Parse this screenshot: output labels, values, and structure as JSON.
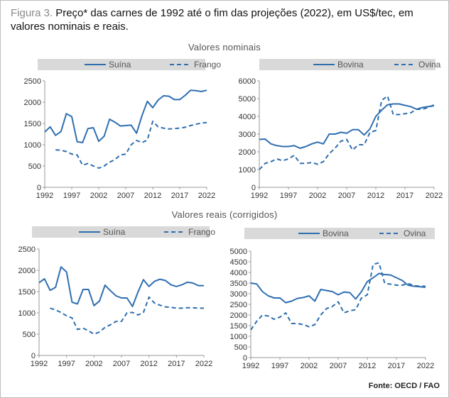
{
  "figure": {
    "label": "Figura 3.",
    "caption": "Preço* das carnes de 1992 até o fim das projeções (2022), em US$/tec, em valores nominais e reais.",
    "section_nominal": "Valores nominais",
    "section_real": "Valores reais (corrigidos)",
    "source": "Fonte: OECD / FAO",
    "colors": {
      "line": "#2f6fb0",
      "legend_bg": "#d9d9d9",
      "axis": "#999999"
    }
  },
  "chart_data": [
    {
      "type": "line",
      "x": [
        1992,
        1993,
        1994,
        1995,
        1996,
        1997,
        1998,
        1999,
        2000,
        2001,
        2002,
        2003,
        2004,
        2005,
        2006,
        2007,
        2008,
        2009,
        2010,
        2011,
        2012,
        2013,
        2014,
        2015,
        2016,
        2017,
        2018,
        2019,
        2020,
        2021,
        2022
      ],
      "xticks": [
        "1992",
        "1997",
        "2002",
        "2007",
        "2012",
        "2017",
        "2022"
      ],
      "yticks": [
        "0",
        "500",
        "1000",
        "1500",
        "2000",
        "2500"
      ],
      "ylim": [
        0,
        2500
      ],
      "series": [
        {
          "name": "Suína",
          "style": "solid",
          "values": [
            1300,
            1420,
            1220,
            1310,
            1730,
            1660,
            1070,
            1050,
            1380,
            1400,
            1080,
            1200,
            1600,
            1530,
            1440,
            1450,
            1460,
            1270,
            1680,
            2020,
            1870,
            2050,
            2150,
            2140,
            2060,
            2060,
            2160,
            2280,
            2270,
            2250,
            2280
          ]
        },
        {
          "name": "Frango",
          "style": "dashed",
          "values": [
            null,
            null,
            880,
            870,
            840,
            780,
            760,
            520,
            560,
            500,
            450,
            500,
            590,
            650,
            760,
            780,
            1000,
            1100,
            1050,
            1110,
            1550,
            1420,
            1390,
            1370,
            1380,
            1390,
            1410,
            1450,
            1480,
            1510,
            1520
          ]
        }
      ]
    },
    {
      "type": "line",
      "x": [
        1992,
        1993,
        1994,
        1995,
        1996,
        1997,
        1998,
        1999,
        2000,
        2001,
        2002,
        2003,
        2004,
        2005,
        2006,
        2007,
        2008,
        2009,
        2010,
        2011,
        2012,
        2013,
        2014,
        2015,
        2016,
        2017,
        2018,
        2019,
        2020,
        2021,
        2022
      ],
      "xticks": [
        "1992",
        "1997",
        "2002",
        "2007",
        "2012",
        "2017",
        "2022"
      ],
      "yticks": [
        "0",
        "1000",
        "2000",
        "3000",
        "4000",
        "5000",
        "6000"
      ],
      "ylim": [
        0,
        6000
      ],
      "series": [
        {
          "name": "Bovina",
          "style": "solid",
          "values": [
            2700,
            2720,
            2450,
            2350,
            2300,
            2300,
            2350,
            2200,
            2300,
            2450,
            2550,
            2450,
            3000,
            3000,
            3100,
            3050,
            3250,
            3250,
            2950,
            3300,
            4000,
            4350,
            4650,
            4700,
            4700,
            4620,
            4550,
            4400,
            4500,
            4550,
            4600
          ]
        },
        {
          "name": "Ovina",
          "style": "dashed",
          "values": [
            1000,
            1350,
            1450,
            1600,
            1500,
            1600,
            1800,
            1350,
            1350,
            1400,
            1300,
            1450,
            1900,
            2200,
            2600,
            2700,
            2100,
            2400,
            2400,
            3100,
            3200,
            4900,
            5150,
            4100,
            4100,
            4150,
            4200,
            4400,
            4400,
            4500,
            4650
          ]
        }
      ]
    },
    {
      "type": "line",
      "x": [
        1992,
        1993,
        1994,
        1995,
        1996,
        1997,
        1998,
        1999,
        2000,
        2001,
        2002,
        2003,
        2004,
        2005,
        2006,
        2007,
        2008,
        2009,
        2010,
        2011,
        2012,
        2013,
        2014,
        2015,
        2016,
        2017,
        2018,
        2019,
        2020,
        2021,
        2022
      ],
      "xticks": [
        "1992",
        "1997",
        "2002",
        "2007",
        "2012",
        "2017",
        "2022"
      ],
      "yticks": [
        "0",
        "500",
        "1000",
        "1500",
        "2000",
        "2500"
      ],
      "ylim": [
        0,
        2500
      ],
      "series": [
        {
          "name": "Suína",
          "style": "solid",
          "values": [
            1710,
            1800,
            1530,
            1600,
            2080,
            1960,
            1250,
            1210,
            1550,
            1550,
            1170,
            1280,
            1650,
            1520,
            1400,
            1350,
            1350,
            1150,
            1490,
            1780,
            1620,
            1740,
            1790,
            1760,
            1660,
            1620,
            1660,
            1720,
            1700,
            1640,
            1640
          ]
        },
        {
          "name": "Frango",
          "style": "dashed",
          "values": [
            null,
            null,
            1110,
            1070,
            1010,
            930,
            880,
            610,
            640,
            580,
            500,
            550,
            660,
            720,
            800,
            800,
            1000,
            1010,
            950,
            1010,
            1370,
            1230,
            1180,
            1140,
            1130,
            1110,
            1110,
            1120,
            1120,
            1110,
            1110
          ]
        }
      ]
    },
    {
      "type": "line",
      "x": [
        1992,
        1993,
        1994,
        1995,
        1996,
        1997,
        1998,
        1999,
        2000,
        2001,
        2002,
        2003,
        2004,
        2005,
        2006,
        2007,
        2008,
        2009,
        2010,
        2011,
        2012,
        2013,
        2014,
        2015,
        2016,
        2017,
        2018,
        2019,
        2020,
        2021,
        2022
      ],
      "xticks": [
        "1992",
        "1997",
        "2002",
        "2007",
        "2012",
        "2017",
        "2022"
      ],
      "yticks": [
        "0",
        "500",
        "1000",
        "1500",
        "2000",
        "2500",
        "3000",
        "3500",
        "4000",
        "4500",
        "5000"
      ],
      "ylim": [
        0,
        5000
      ],
      "series": [
        {
          "name": "Bovina",
          "style": "solid",
          "values": [
            3500,
            3460,
            3100,
            2900,
            2800,
            2800,
            2580,
            2650,
            2780,
            2820,
            2900,
            2650,
            3200,
            3150,
            3100,
            2950,
            3080,
            3050,
            2750,
            3100,
            3570,
            3750,
            3950,
            3900,
            3880,
            3750,
            3620,
            3400,
            3350,
            3330,
            3300
          ]
        },
        {
          "name": "Ovina",
          "style": "dashed",
          "values": [
            1300,
            1700,
            2000,
            1950,
            1800,
            1900,
            2100,
            1600,
            1600,
            1550,
            1450,
            1550,
            2000,
            2300,
            2400,
            2620,
            2100,
            2200,
            2250,
            2800,
            2950,
            4380,
            4450,
            3480,
            3450,
            3400,
            3400,
            3480,
            3380,
            3350,
            3350
          ]
        }
      ]
    }
  ]
}
